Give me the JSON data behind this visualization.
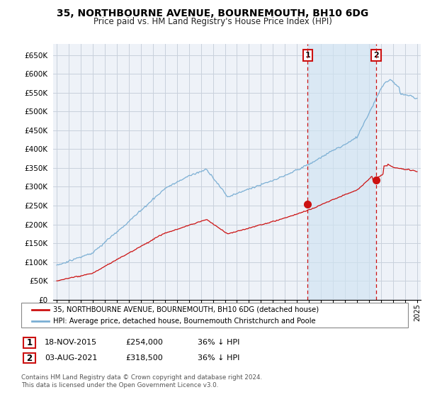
{
  "title": "35, NORTHBOURNE AVENUE, BOURNEMOUTH, BH10 6DG",
  "subtitle": "Price paid vs. HM Land Registry's House Price Index (HPI)",
  "ylabel_ticks": [
    "£0",
    "£50K",
    "£100K",
    "£150K",
    "£200K",
    "£250K",
    "£300K",
    "£350K",
    "£400K",
    "£450K",
    "£500K",
    "£550K",
    "£600K",
    "£650K"
  ],
  "ytick_values": [
    0,
    50000,
    100000,
    150000,
    200000,
    250000,
    300000,
    350000,
    400000,
    450000,
    500000,
    550000,
    600000,
    650000
  ],
  "ylim": [
    0,
    680000
  ],
  "xlim_start": 1994.7,
  "xlim_end": 2025.3,
  "sale1_year": 2015.88,
  "sale1_price": 254000,
  "sale2_year": 2021.59,
  "sale2_price": 318500,
  "legend_property": "35, NORTHBOURNE AVENUE, BOURNEMOUTH, BH10 6DG (detached house)",
  "legend_hpi": "HPI: Average price, detached house, Bournemouth Christchurch and Poole",
  "table_row1": [
    "1",
    "18-NOV-2015",
    "£254,000",
    "36% ↓ HPI"
  ],
  "table_row2": [
    "2",
    "03-AUG-2021",
    "£318,500",
    "36% ↓ HPI"
  ],
  "footer": "Contains HM Land Registry data © Crown copyright and database right 2024.\nThis data is licensed under the Open Government Licence v3.0.",
  "hpi_color": "#7bafd4",
  "hpi_fill_color": "#d6e8f5",
  "price_color": "#cc1111",
  "bg_color": "#eef2f8",
  "grid_color": "#c8d0dc",
  "dashed_line_color": "#cc1111",
  "title_fontsize": 10,
  "subtitle_fontsize": 8.5
}
